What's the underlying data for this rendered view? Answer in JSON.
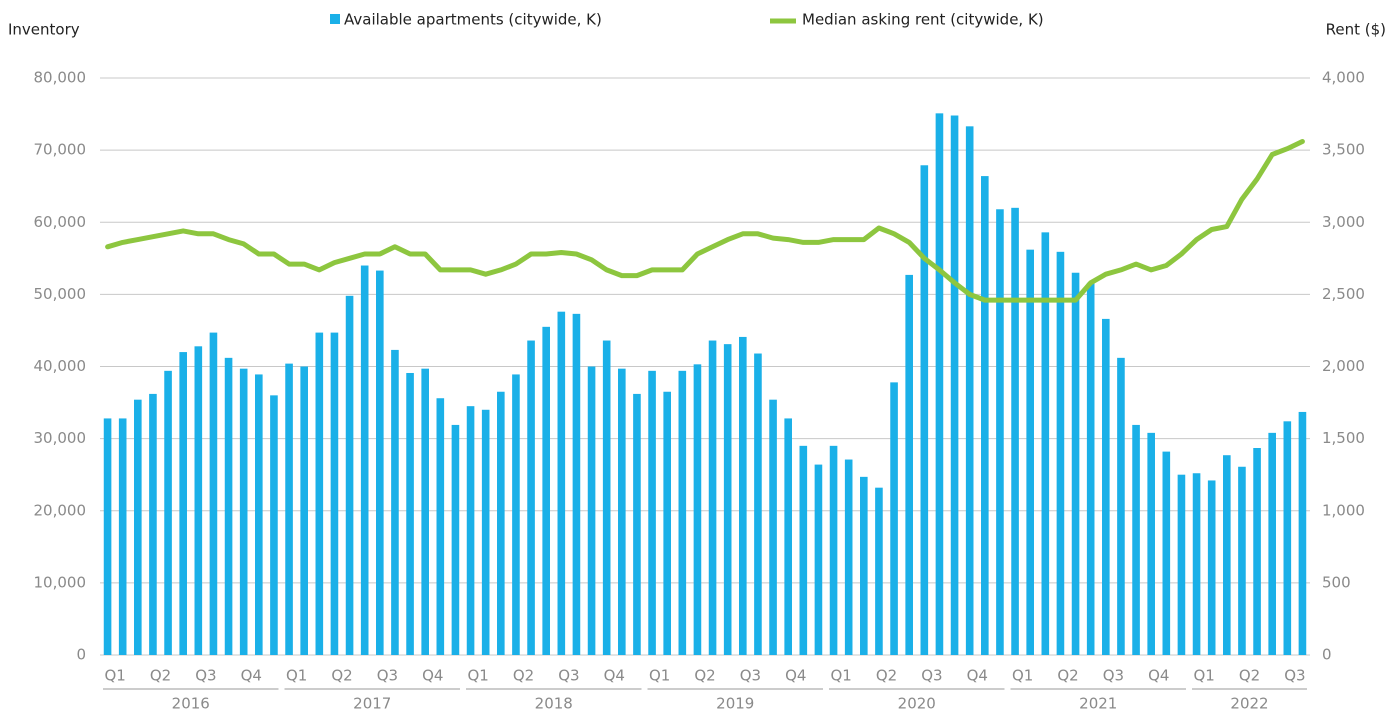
{
  "chart_data": {
    "type": "bar-line",
    "y_label": "Inventory",
    "y2_label": "Rent ($)",
    "categories": [
      "Q1",
      null,
      null,
      "Q2",
      null,
      null,
      "Q3",
      null,
      null,
      "Q4",
      null,
      null,
      "Q1",
      null,
      null,
      "Q2",
      null,
      null,
      "Q3",
      null,
      null,
      "Q4",
      null,
      null,
      "Q1",
      null,
      null,
      "Q2",
      null,
      null,
      "Q3",
      null,
      null,
      "Q4",
      null,
      null,
      "Q1",
      null,
      null,
      "Q2",
      null,
      null,
      "Q3",
      null,
      null,
      "Q4",
      null,
      null,
      "Q1",
      null,
      null,
      "Q2",
      null,
      null,
      "Q3",
      null,
      null,
      "Q4",
      null,
      null,
      "Q1",
      null,
      null,
      "Q2",
      null,
      null,
      "Q3",
      null,
      null,
      "Q4",
      null,
      null,
      "Q1",
      null,
      null,
      "Q2",
      null,
      null,
      "Q3",
      null
    ],
    "years": [
      "2016",
      "2017",
      "2018",
      "2019",
      "2020",
      "2021",
      "2022"
    ],
    "series": [
      {
        "name": "Available apartments (citywide, K)",
        "color": "#1ab0e8",
        "type": "bar",
        "values": [
          32800,
          32800,
          35400,
          36200,
          39400,
          42000,
          42800,
          44700,
          41200,
          39700,
          38900,
          36000,
          40400,
          40000,
          44700,
          44700,
          49800,
          54000,
          53300,
          42300,
          39100,
          39700,
          35600,
          31900,
          34500,
          34000,
          36500,
          38900,
          43600,
          45500,
          47600,
          47300,
          40000,
          43600,
          39700,
          36200,
          39400,
          36500,
          39400,
          40300,
          43600,
          43100,
          44100,
          41800,
          35400,
          32800,
          29000,
          26400,
          29000,
          27100,
          24700,
          23200,
          37800,
          52700,
          67900,
          75100,
          74800,
          73300,
          66400,
          61800,
          62000,
          56200,
          58600,
          55900,
          53000,
          51600,
          46600,
          41200,
          31900,
          30800,
          28200,
          25000,
          25200,
          24200,
          27700,
          26100,
          28700,
          30800,
          32400,
          33700
        ]
      },
      {
        "name": "Median asking rent (citywide, K)",
        "color": "#8dc63f",
        "type": "line",
        "axis": "y2",
        "values": [
          2830,
          2860,
          2880,
          2900,
          2920,
          2940,
          2920,
          2920,
          2880,
          2850,
          2780,
          2780,
          2710,
          2710,
          2670,
          2720,
          2750,
          2780,
          2780,
          2830,
          2780,
          2780,
          2670,
          2670,
          2670,
          2640,
          2670,
          2710,
          2780,
          2780,
          2790,
          2780,
          2740,
          2670,
          2630,
          2630,
          2670,
          2670,
          2670,
          2780,
          2830,
          2880,
          2920,
          2920,
          2890,
          2880,
          2860,
          2860,
          2880,
          2880,
          2880,
          2960,
          2920,
          2860,
          2750,
          2670,
          2580,
          2500,
          2460,
          2460,
          2460,
          2460,
          2460,
          2460,
          2460,
          2580,
          2640,
          2670,
          2710,
          2670,
          2700,
          2780,
          2880,
          2950,
          2970,
          3160,
          3300,
          3470,
          3510,
          3560
        ]
      }
    ],
    "ylim": [
      0,
      80000
    ],
    "yticks": [
      0,
      {
        "value": 10000,
        "label": "10,000"
      },
      {
        "value": 20000,
        "label": "20,000"
      },
      {
        "value": 30000,
        "label": "30,000"
      },
      {
        "value": 40000,
        "label": "40,000"
      },
      {
        "value": 50000,
        "label": "50,000"
      },
      {
        "value": 60000,
        "label": "60,000"
      },
      {
        "value": 70000,
        "label": "70,000"
      },
      {
        "value": 80000,
        "label": "80,000"
      }
    ],
    "y2lim": [
      0,
      4000
    ],
    "y2ticks": [
      0,
      500,
      {
        "value": 1000,
        "label": "1,000"
      },
      {
        "value": 1500,
        "label": "1,500"
      },
      {
        "value": 2000,
        "label": "2,000"
      },
      {
        "value": 2500,
        "label": "2,500"
      },
      {
        "value": 3000,
        "label": "3,000"
      },
      {
        "value": 3500,
        "label": "3,500"
      },
      {
        "value": 4000,
        "label": "4,000"
      }
    ],
    "grid": true
  }
}
